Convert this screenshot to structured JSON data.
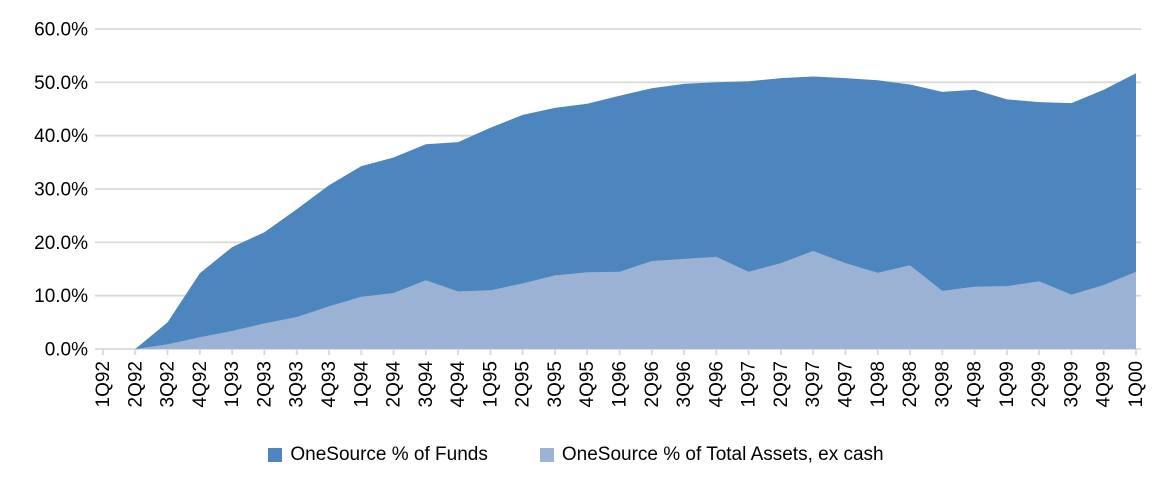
{
  "chart_data": {
    "type": "area",
    "title": "",
    "categories": [
      "1Q92",
      "2Q92",
      "3Q92",
      "4Q92",
      "1Q93",
      "2Q93",
      "3Q93",
      "4Q93",
      "1Q94",
      "2Q94",
      "3Q94",
      "4Q94",
      "1Q95",
      "2Q95",
      "3Q95",
      "4Q95",
      "1Q96",
      "2Q96",
      "3Q96",
      "4Q96",
      "1Q97",
      "2Q97",
      "3Q97",
      "4Q97",
      "1Q98",
      "2Q98",
      "3Q98",
      "4Q98",
      "1Q99",
      "2Q99",
      "3Q99",
      "4Q99",
      "1Q00"
    ],
    "series": [
      {
        "name": "OneSource % of Funds",
        "color": "#4d86be",
        "values": [
          0,
          0,
          5.0,
          14.2,
          19.1,
          21.9,
          26.2,
          30.7,
          34.3,
          35.9,
          38.4,
          38.8,
          41.5,
          43.9,
          45.2,
          46.0,
          47.5,
          48.9,
          49.7,
          50.0,
          50.2,
          50.8,
          51.1,
          50.8,
          50.4,
          49.6,
          48.2,
          48.6,
          46.8,
          46.3,
          46.1,
          48.6,
          51.7
        ]
      },
      {
        "name": "OneSource % of Total Assets, ex cash",
        "color": "#9cb2d4",
        "values": [
          0,
          0,
          0.9,
          2.2,
          3.4,
          4.8,
          6.0,
          8.0,
          9.8,
          10.5,
          12.9,
          10.8,
          11.0,
          12.3,
          13.8,
          14.4,
          14.5,
          16.5,
          16.9,
          17.3,
          14.5,
          16.1,
          18.4,
          16.1,
          14.3,
          15.7,
          10.9,
          11.7,
          11.8,
          12.7,
          10.2,
          12.0,
          14.5
        ]
      }
    ],
    "xlabel": "",
    "ylabel": "",
    "ylim": [
      0,
      60
    ],
    "ytick_step": 10,
    "ytick_labels": [
      "0.0%",
      "10.0%",
      "20.0%",
      "30.0%",
      "40.0%",
      "50.0%",
      "60.0%"
    ],
    "grid": true,
    "legend_position": "bottom",
    "gridline_color": "#d9d9d9",
    "background_color": "#ffffff",
    "text_color": "#000000"
  }
}
